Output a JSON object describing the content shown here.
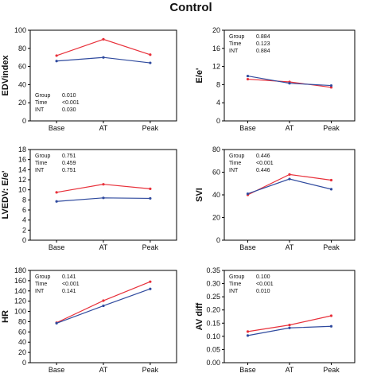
{
  "title": "Control",
  "colors": {
    "series_a": "#e8303a",
    "series_b": "#2f4a9e"
  },
  "chart_data": [
    {
      "type": "line",
      "ylabel": "EDVindex",
      "categories": [
        "Base",
        "AT",
        "Peak"
      ],
      "ylim": [
        0,
        100
      ],
      "yticks": [
        0,
        20,
        40,
        60,
        80,
        100
      ],
      "stats_position": "bottom-left",
      "stats": [
        {
          "label": "Group",
          "value": "0.010"
        },
        {
          "label": "Time",
          "value": "<0.001"
        },
        {
          "label": "INT",
          "value": "0.030"
        }
      ],
      "series": [
        {
          "color": "#e8303a",
          "values": [
            72,
            90,
            73
          ]
        },
        {
          "color": "#2f4a9e",
          "values": [
            66,
            70,
            64
          ]
        }
      ]
    },
    {
      "type": "line",
      "ylabel": "E/e'",
      "categories": [
        "Base",
        "AT",
        "Peak"
      ],
      "ylim": [
        0,
        20
      ],
      "yticks": [
        0,
        4,
        8,
        12,
        16,
        20
      ],
      "stats_position": "top-left",
      "stats": [
        {
          "label": "Group",
          "value": "0.884"
        },
        {
          "label": "Time",
          "value": "0.123"
        },
        {
          "label": "INT",
          "value": "0.884"
        }
      ],
      "series": [
        {
          "color": "#e8303a",
          "values": [
            9.2,
            8.6,
            7.4
          ]
        },
        {
          "color": "#2f4a9e",
          "values": [
            9.9,
            8.3,
            7.8
          ]
        }
      ]
    },
    {
      "type": "line",
      "ylabel": "LVEDV: E/e'",
      "categories": [
        "Base",
        "AT",
        "Peak"
      ],
      "ylim": [
        0,
        18
      ],
      "yticks": [
        0,
        2,
        4,
        6,
        8,
        10,
        12,
        14,
        16,
        18
      ],
      "stats_position": "top-left",
      "stats": [
        {
          "label": "Group",
          "value": "0.751"
        },
        {
          "label": "Time",
          "value": "0.459"
        },
        {
          "label": "INT",
          "value": "0.751"
        }
      ],
      "series": [
        {
          "color": "#e8303a",
          "values": [
            9.5,
            11.1,
            10.2
          ]
        },
        {
          "color": "#2f4a9e",
          "values": [
            7.7,
            8.4,
            8.3
          ]
        }
      ]
    },
    {
      "type": "line",
      "ylabel": "SVI",
      "categories": [
        "Base",
        "AT",
        "Peak"
      ],
      "ylim": [
        0,
        80
      ],
      "yticks": [
        0,
        20,
        40,
        60,
        80
      ],
      "stats_position": "top-left",
      "stats": [
        {
          "label": "Group",
          "value": "0.446"
        },
        {
          "label": "Time",
          "value": "<0.001"
        },
        {
          "label": "INT",
          "value": "0.446"
        }
      ],
      "series": [
        {
          "color": "#e8303a",
          "values": [
            40,
            58,
            53
          ]
        },
        {
          "color": "#2f4a9e",
          "values": [
            41,
            54,
            45
          ]
        }
      ]
    },
    {
      "type": "line",
      "ylabel": "HR",
      "categories": [
        "Base",
        "AT",
        "Peak"
      ],
      "ylim": [
        0,
        180
      ],
      "yticks": [
        0,
        20,
        40,
        60,
        80,
        100,
        120,
        140,
        160,
        180
      ],
      "stats_position": "top-left",
      "stats": [
        {
          "label": "Group",
          "value": "0.141"
        },
        {
          "label": "Time",
          "value": "<0.001"
        },
        {
          "label": "INT",
          "value": "0.141"
        }
      ],
      "series": [
        {
          "color": "#e8303a",
          "values": [
            78,
            121,
            158
          ]
        },
        {
          "color": "#2f4a9e",
          "values": [
            77,
            111,
            144
          ]
        }
      ]
    },
    {
      "type": "line",
      "ylabel": "AV diff",
      "categories": [
        "Base",
        "AT",
        "Peak"
      ],
      "ylim": [
        0,
        0.35
      ],
      "yticks": [
        0,
        0.05,
        0.1,
        0.15,
        0.2,
        0.25,
        0.3,
        0.35
      ],
      "ytick_labels": [
        "0.00",
        "0.05",
        "0.10",
        "0.15",
        "0.20",
        "0.25",
        "0.30",
        "0.35"
      ],
      "stats_position": "top-left",
      "stats": [
        {
          "label": "Group",
          "value": "0.100"
        },
        {
          "label": "Time",
          "value": "<0.001"
        },
        {
          "label": "INT",
          "value": "0.010"
        }
      ],
      "series": [
        {
          "color": "#e8303a",
          "values": [
            0.118,
            0.143,
            0.178
          ]
        },
        {
          "color": "#2f4a9e",
          "values": [
            0.103,
            0.132,
            0.138
          ]
        }
      ]
    }
  ]
}
